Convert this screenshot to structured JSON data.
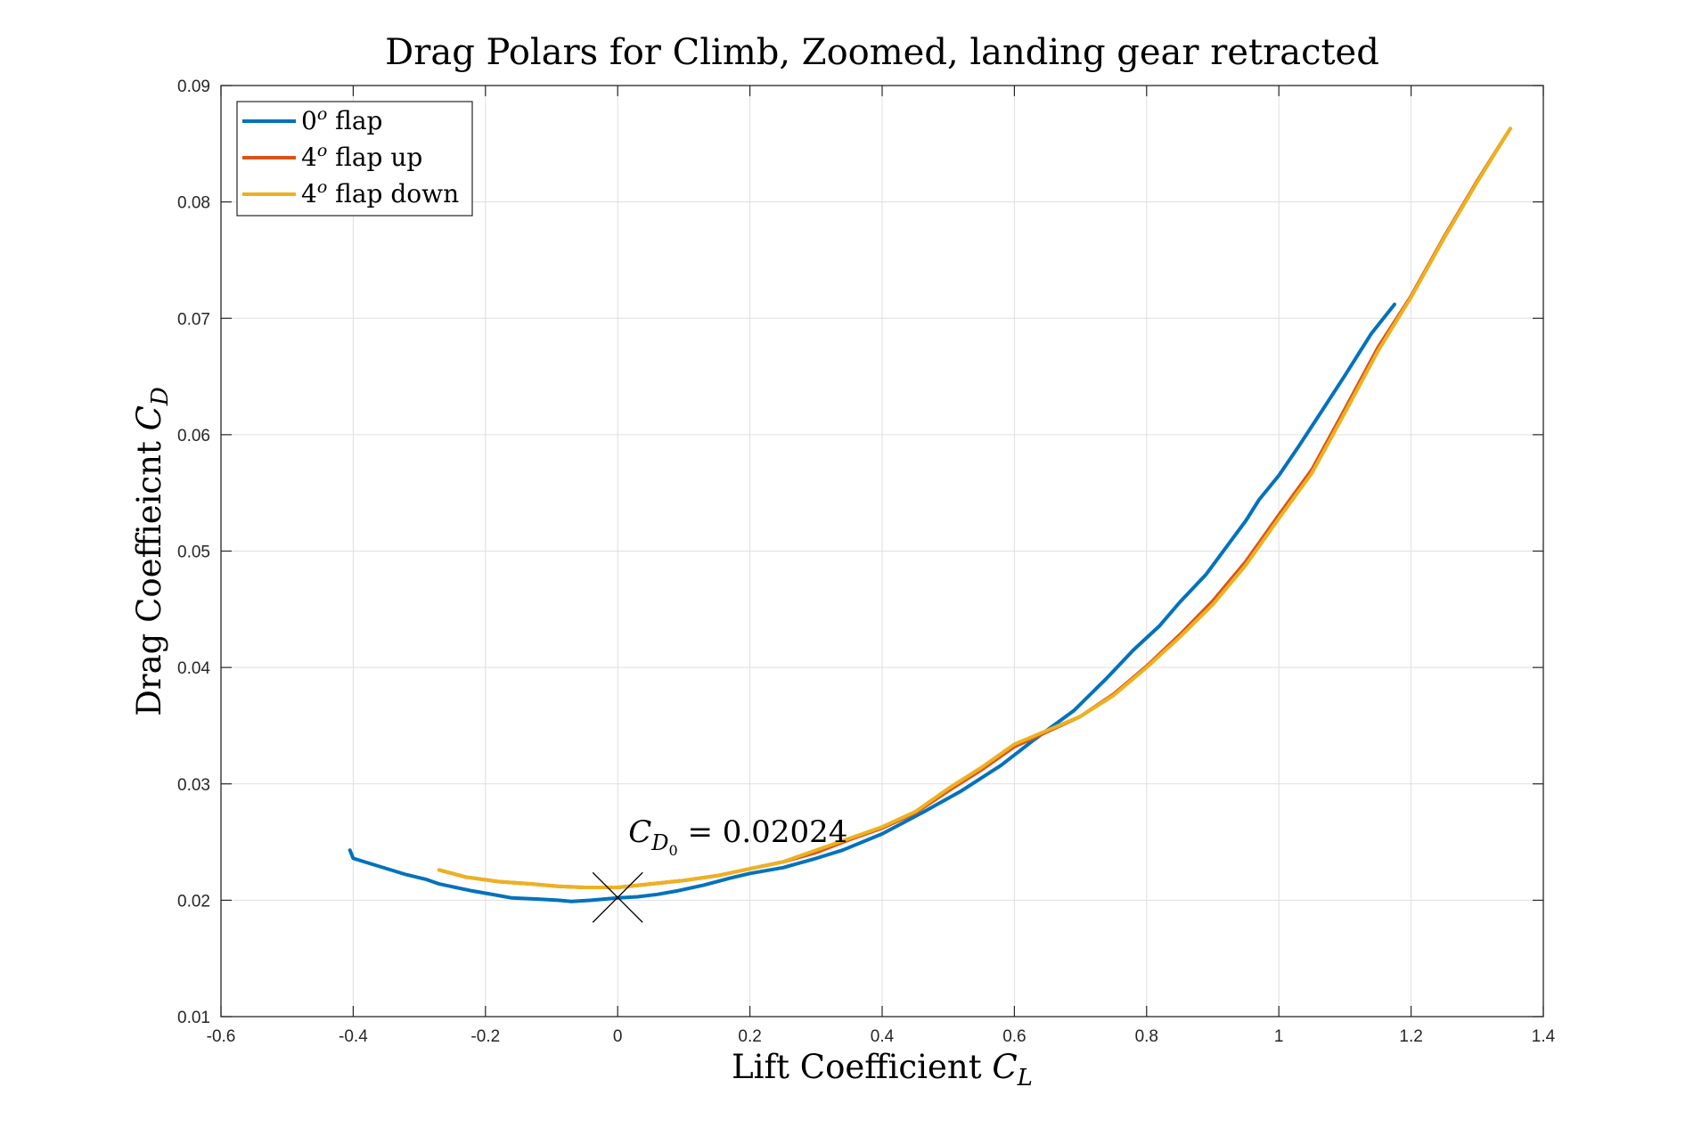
{
  "chart_data": {
    "type": "line",
    "title": "Drag Polars for Climb, Zoomed, landing gear retracted",
    "xlabel_main": "Lift Coefficient ",
    "xlabel_sym": "C",
    "xlabel_sub": "L",
    "ylabel_main": "Drag Coeffieicnt ",
    "ylabel_sym": "C",
    "ylabel_sub": "D",
    "xlim": [
      -0.6,
      1.4
    ],
    "ylim": [
      0.01,
      0.09
    ],
    "xticks": [
      "-0.6",
      "-0.4",
      "-0.2",
      "0",
      "0.2",
      "0.4",
      "0.6",
      "0.8",
      "1",
      "1.2",
      "1.4"
    ],
    "yticks": [
      "0.01",
      "0.02",
      "0.03",
      "0.04",
      "0.05",
      "0.06",
      "0.07",
      "0.08",
      "0.09"
    ],
    "grid": true,
    "legend_position": "top-left",
    "series": [
      {
        "label_base": "0",
        "label_sup": "o",
        "label_rest": " flap",
        "color": "#0072BD",
        "x": [
          -0.405,
          -0.4,
          -0.36,
          -0.32,
          -0.29,
          -0.27,
          -0.22,
          -0.18,
          -0.16,
          -0.12,
          -0.09,
          -0.07,
          -0.04,
          0.0,
          0.03,
          0.06,
          0.09,
          0.13,
          0.17,
          0.2,
          0.25,
          0.3,
          0.34,
          0.4,
          0.46,
          0.52,
          0.58,
          0.63,
          0.69,
          0.74,
          0.78,
          0.82,
          0.85,
          0.89,
          0.92,
          0.95,
          0.97,
          1.0,
          1.03,
          1.06,
          1.1,
          1.14,
          1.175
        ],
        "y": [
          0.0243,
          0.0236,
          0.0229,
          0.0222,
          0.0218,
          0.0214,
          0.0208,
          0.0204,
          0.0202,
          0.0201,
          0.02,
          0.0199,
          0.02,
          0.0202,
          0.0203,
          0.0205,
          0.0208,
          0.0213,
          0.0219,
          0.0223,
          0.0228,
          0.0236,
          0.0243,
          0.0257,
          0.0275,
          0.0294,
          0.0316,
          0.0338,
          0.0363,
          0.0391,
          0.0415,
          0.0436,
          0.0456,
          0.048,
          0.0503,
          0.0526,
          0.0544,
          0.0565,
          0.059,
          0.0616,
          0.0651,
          0.0687,
          0.0712
        ]
      },
      {
        "label_base": "4",
        "label_sup": "o",
        "label_rest": " flap up",
        "color": "#D95319",
        "x": [
          -0.27,
          -0.23,
          -0.18,
          -0.13,
          -0.09,
          -0.05,
          0.0,
          0.05,
          0.1,
          0.15,
          0.2,
          0.25,
          0.3,
          0.35,
          0.4,
          0.45,
          0.5,
          0.55,
          0.6,
          0.65,
          0.7,
          0.75,
          0.8,
          0.85,
          0.9,
          0.95,
          1.0,
          1.05,
          1.1,
          1.15,
          1.2,
          1.25,
          1.3,
          1.35
        ],
        "y": [
          0.0226,
          0.022,
          0.0216,
          0.0214,
          0.0212,
          0.0211,
          0.0211,
          0.0214,
          0.0217,
          0.0221,
          0.0227,
          0.0233,
          0.0241,
          0.0252,
          0.0262,
          0.0275,
          0.0294,
          0.0312,
          0.0332,
          0.0345,
          0.0358,
          0.0377,
          0.0401,
          0.0428,
          0.0457,
          0.0491,
          0.0531,
          0.057,
          0.0622,
          0.0675,
          0.0719,
          0.077,
          0.0818,
          0.0863
        ]
      },
      {
        "label_base": "4",
        "label_sup": "o",
        "label_rest": " flap down",
        "color": "#EDB120",
        "x": [
          -0.27,
          -0.23,
          -0.18,
          -0.13,
          -0.09,
          -0.05,
          0.0,
          0.05,
          0.1,
          0.15,
          0.2,
          0.25,
          0.3,
          0.35,
          0.4,
          0.45,
          0.5,
          0.55,
          0.6,
          0.65,
          0.7,
          0.75,
          0.8,
          0.85,
          0.9,
          0.95,
          1.0,
          1.05,
          1.1,
          1.15,
          1.2,
          1.25,
          1.3,
          1.35
        ],
        "y": [
          0.0226,
          0.022,
          0.0216,
          0.0214,
          0.0212,
          0.0211,
          0.0211,
          0.0214,
          0.0217,
          0.0221,
          0.0227,
          0.0233,
          0.0243,
          0.0253,
          0.0263,
          0.0276,
          0.0296,
          0.0314,
          0.0334,
          0.0346,
          0.0358,
          0.0376,
          0.04,
          0.0426,
          0.0454,
          0.0488,
          0.0528,
          0.0567,
          0.0619,
          0.0672,
          0.0718,
          0.0769,
          0.0817,
          0.0863
        ]
      }
    ],
    "annotation": {
      "marker_x": 0.0,
      "marker_y": 0.02024,
      "sym": "C",
      "sub": "D",
      "subsub": "0",
      "rest": " = 0.02024"
    }
  }
}
